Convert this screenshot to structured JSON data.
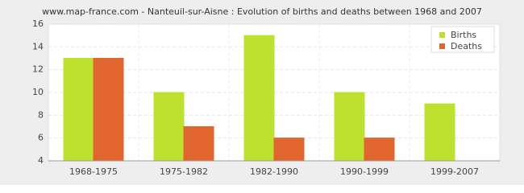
{
  "chart_data": {
    "type": "bar",
    "title": "www.map-france.com - Nanteuil-sur-Aisne : Evolution of births and deaths between 1968 and 2007",
    "categories": [
      "1968-1975",
      "1975-1982",
      "1982-1990",
      "1990-1999",
      "1999-2007"
    ],
    "series": [
      {
        "name": "Births",
        "color": "#bde12e",
        "values": [
          13,
          10,
          15,
          10,
          9
        ]
      },
      {
        "name": "Deaths",
        "color": "#e0652f",
        "values": [
          13,
          7,
          6,
          6,
          4
        ]
      }
    ],
    "ylim": [
      4,
      16
    ],
    "yticks": [
      4,
      6,
      8,
      10,
      12,
      14,
      16
    ],
    "grid": true,
    "legend": "top-right"
  }
}
